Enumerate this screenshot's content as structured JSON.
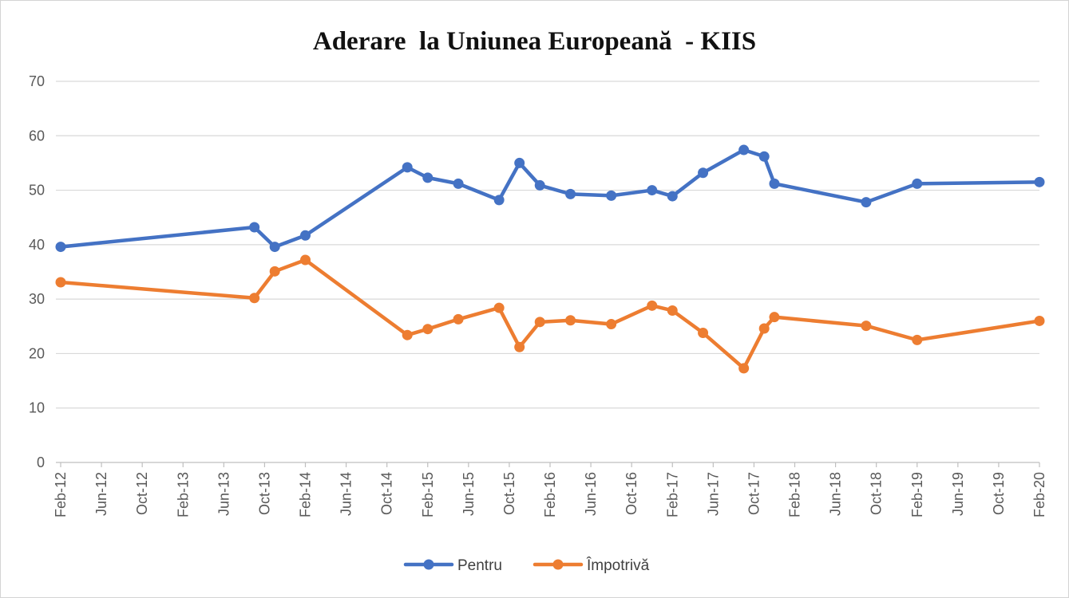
{
  "chart_data": {
    "type": "line",
    "title": "Aderare  la Uniunea Europeană  - KIIS",
    "xlabel": "",
    "ylabel": "",
    "ylim": [
      0,
      70
    ],
    "yticks": [
      "0",
      "10",
      "20",
      "30",
      "40",
      "50",
      "60",
      "70"
    ],
    "x_tick_labels": [
      "Feb-12",
      "Jun-12",
      "Oct-12",
      "Feb-13",
      "Jun-13",
      "Oct-13",
      "Feb-14",
      "Jun-14",
      "Oct-14",
      "Feb-15",
      "Jun-15",
      "Oct-15",
      "Feb-16",
      "Jun-16",
      "Oct-16",
      "Feb-17",
      "Jun-17",
      "Oct-17",
      "Feb-18",
      "Jun-18",
      "Oct-18",
      "Feb-19",
      "Jun-19",
      "Oct-19",
      "Feb-20"
    ],
    "x": [
      "2012-02",
      "2013-09",
      "2013-11",
      "2014-02",
      "2014-12",
      "2015-02",
      "2015-05",
      "2015-09",
      "2015-11",
      "2016-01",
      "2016-04",
      "2016-08",
      "2016-12",
      "2017-02",
      "2017-05",
      "2017-09",
      "2017-11",
      "2017-12",
      "2018-09",
      "2019-02",
      "2020-02"
    ],
    "series": [
      {
        "name": "Pentru",
        "color": "#4472C4",
        "values": [
          39.6,
          43.2,
          39.6,
          41.7,
          54.2,
          52.3,
          51.2,
          48.2,
          55.0,
          50.9,
          49.3,
          49.0,
          50.0,
          48.9,
          53.2,
          57.4,
          56.2,
          51.2,
          47.8,
          51.2,
          51.5
        ]
      },
      {
        "name": "Împotrivă",
        "color": "#ED7D31",
        "values": [
          33.1,
          30.2,
          35.1,
          37.2,
          23.4,
          24.5,
          26.3,
          28.4,
          21.2,
          25.8,
          26.1,
          25.4,
          28.8,
          27.9,
          23.8,
          17.3,
          24.6,
          26.7,
          25.1,
          22.5,
          26.0
        ]
      }
    ],
    "grid": true,
    "legend": "bottom"
  }
}
